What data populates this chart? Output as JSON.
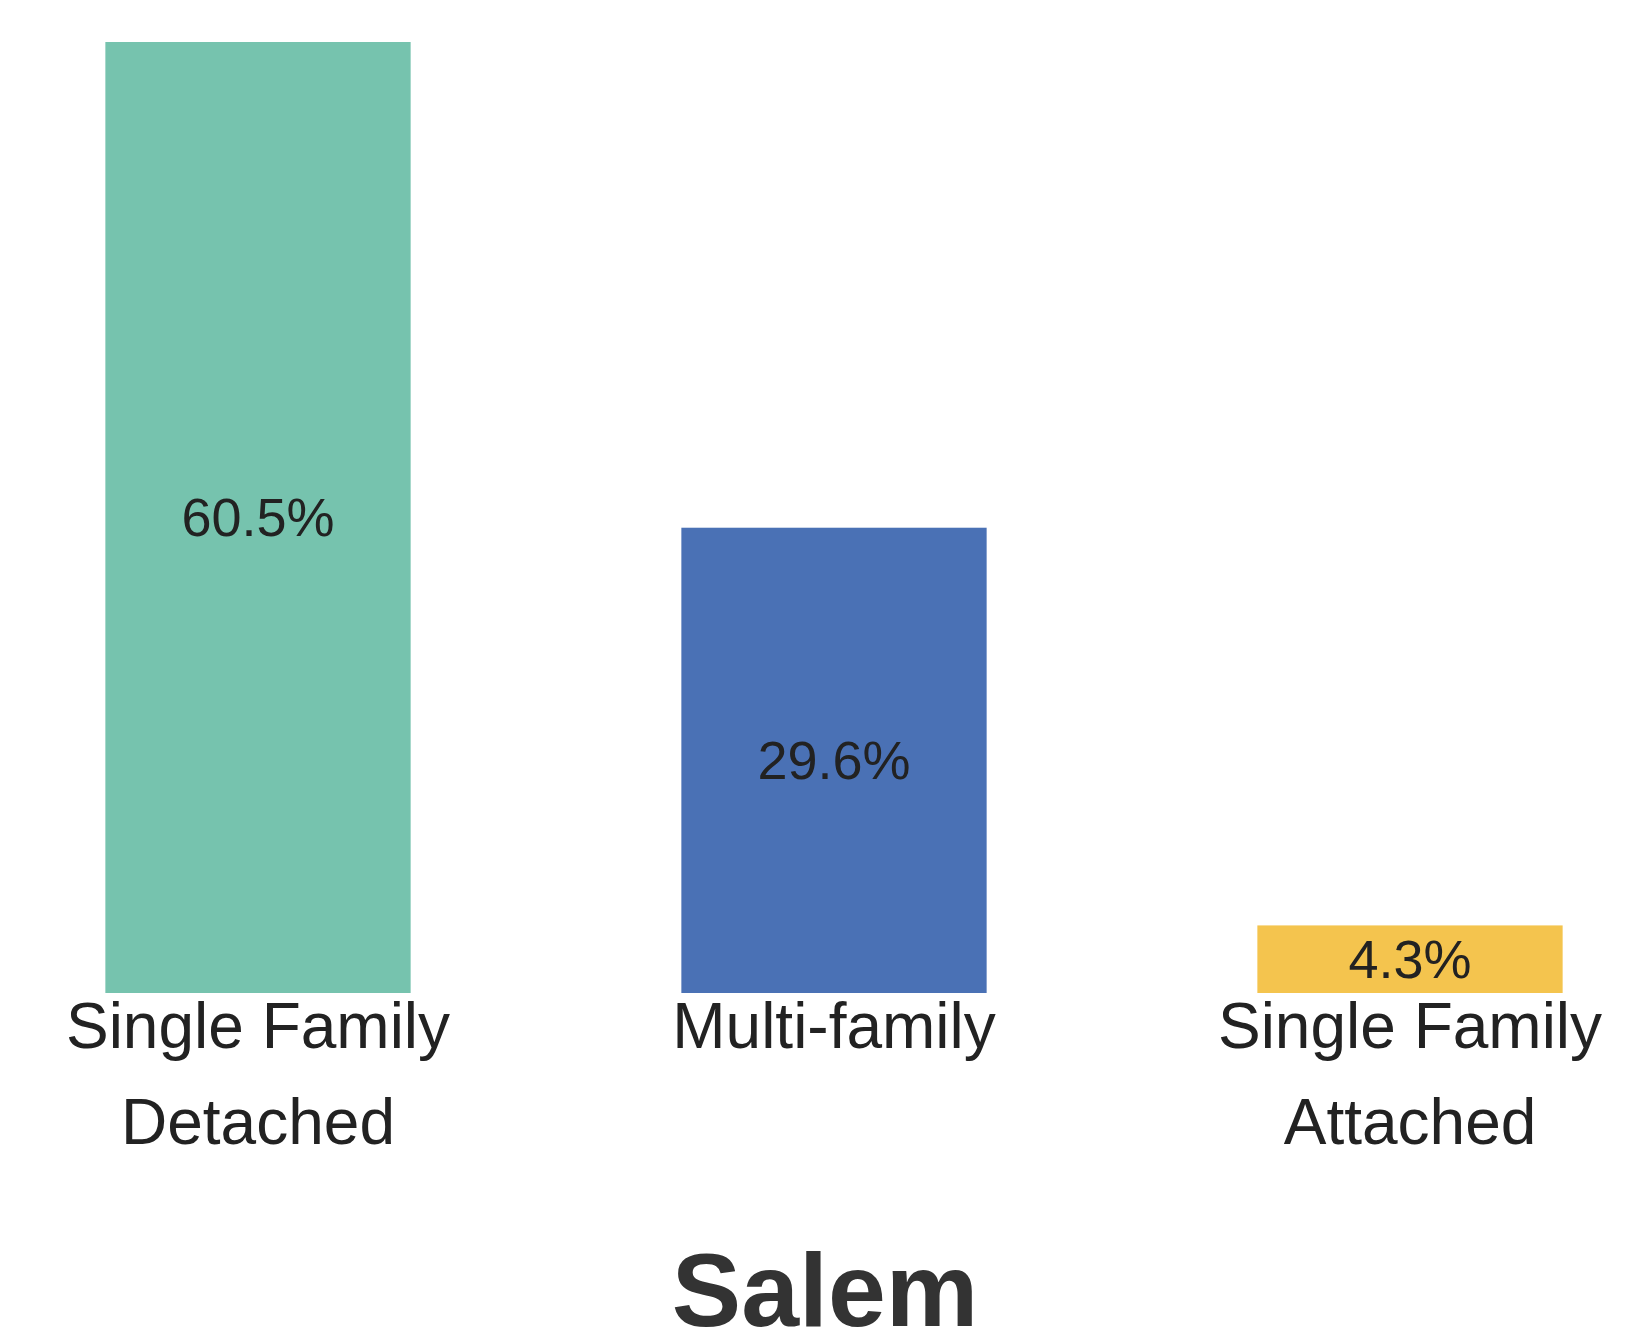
{
  "chart_data": {
    "type": "bar",
    "xlabel": "Salem",
    "categories": [
      "Single Family Detached",
      "Multi-family",
      "Single Family Attached"
    ],
    "values": [
      60.5,
      29.6,
      4.3
    ],
    "colors": [
      "#76c3ae",
      "#4a71b5",
      "#f4c44e"
    ],
    "value_labels": [
      "60.5%",
      "29.6%",
      "4.3%"
    ]
  }
}
